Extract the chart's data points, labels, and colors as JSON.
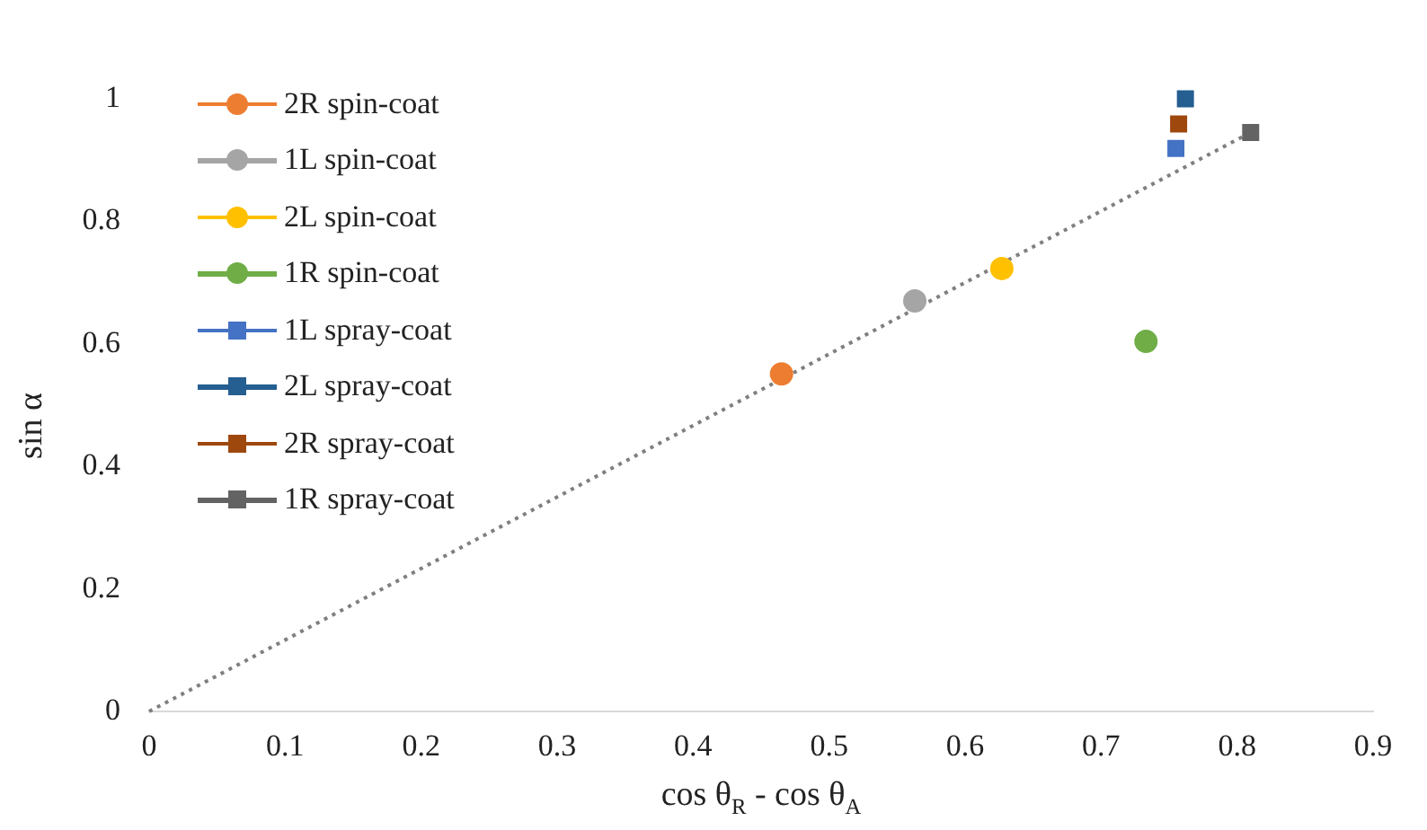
{
  "chart_data": {
    "type": "scatter",
    "xlabel": "cos θ$_{R}$ - cos θ$_{A}$",
    "ylabel": "sin α",
    "xlim": [
      0,
      0.9
    ],
    "xticks": [
      0,
      0.1,
      0.2,
      0.3,
      0.4,
      0.5,
      0.6,
      0.7,
      0.8,
      0.9
    ],
    "ylim": [
      0,
      1
    ],
    "yticks": [
      0,
      0.2,
      0.4,
      0.6,
      0.8,
      1
    ],
    "grid": false,
    "legend": "top left",
    "series": [
      {
        "name": "2R spin-coat",
        "color": "#ed7d31",
        "marker": "circle",
        "x": [
          0.465
        ],
        "values": [
          0.551
        ]
      },
      {
        "name": "1L spin-coat",
        "color": "#a5a5a5",
        "marker": "circle",
        "x": [
          0.563
        ],
        "values": [
          0.67
        ]
      },
      {
        "name": "2L spin-coat",
        "color": "#ffc000",
        "marker": "circle",
        "x": [
          0.627
        ],
        "values": [
          0.723
        ]
      },
      {
        "name": "1R spin-coat",
        "color": "#70ad47",
        "marker": "circle",
        "x": [
          0.733
        ],
        "values": [
          0.604
        ]
      },
      {
        "name": "1L spray-coat",
        "color": "#4472c4",
        "marker": "square",
        "x": [
          0.755
        ],
        "values": [
          0.919
        ]
      },
      {
        "name": "2L spray-coat",
        "color": "#255e91",
        "marker": "square",
        "x": [
          0.762
        ],
        "values": [
          1.0
        ]
      },
      {
        "name": "2R spray-coat",
        "color": "#9e480e",
        "marker": "square",
        "x": [
          0.757
        ],
        "values": [
          0.959
        ]
      },
      {
        "name": "1R spray-coat",
        "color": "#636363",
        "marker": "square",
        "x": [
          0.81
        ],
        "values": [
          0.945
        ]
      },
      {
        "type": "line",
        "color": "#7f7f7f",
        "line_style": "dotted",
        "marker": "none",
        "x": [
          0,
          0.81
        ],
        "values": [
          0,
          0.945
        ]
      }
    ]
  }
}
